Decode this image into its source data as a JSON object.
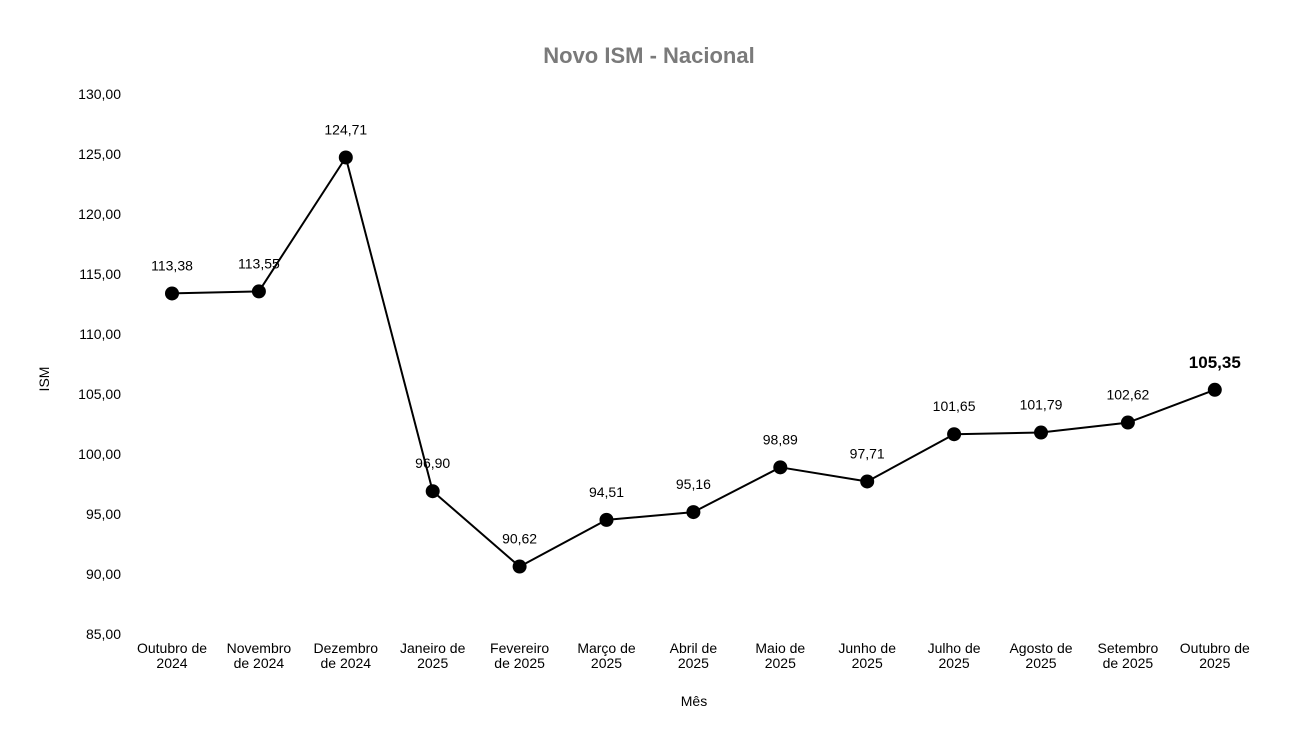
{
  "chart_data": {
    "type": "line",
    "title": "Novo ISM - Nacional",
    "xlabel": "Mês",
    "ylabel": "ISM",
    "ylim": [
      85,
      130
    ],
    "yticks": [
      "85,00",
      "90,00",
      "95,00",
      "100,00",
      "105,00",
      "110,00",
      "115,00",
      "120,00",
      "125,00",
      "130,00"
    ],
    "grid": false,
    "legend": "none",
    "categories": [
      [
        "Outubro de",
        "2024"
      ],
      [
        "Novembro",
        "de 2024"
      ],
      [
        "Dezembro",
        "de 2024"
      ],
      [
        "Janeiro de",
        "2025"
      ],
      [
        "Fevereiro",
        "de 2025"
      ],
      [
        "Março de",
        "2025"
      ],
      [
        "Abril de",
        "2025"
      ],
      [
        "Maio de",
        "2025"
      ],
      [
        "Junho de",
        "2025"
      ],
      [
        "Julho de",
        "2025"
      ],
      [
        "Agosto de",
        "2025"
      ],
      [
        "Setembro",
        "de 2025"
      ],
      [
        "Outubro de",
        "2025"
      ]
    ],
    "series": [
      {
        "values": [
          113.38,
          113.55,
          124.71,
          96.9,
          90.62,
          94.51,
          95.16,
          98.89,
          97.71,
          101.65,
          101.79,
          102.62,
          105.35
        ],
        "labels": [
          "113,38",
          "113,55",
          "124,71",
          "96,90",
          "90,62",
          "94,51",
          "95,16",
          "98,89",
          "97,71",
          "101,65",
          "101,79",
          "102,62",
          "105,35"
        ],
        "emphasized_index": 12,
        "color": "#000000"
      }
    ],
    "colors": {
      "title": "#7a7a7a",
      "line": "#000000",
      "text": "#000000"
    }
  }
}
